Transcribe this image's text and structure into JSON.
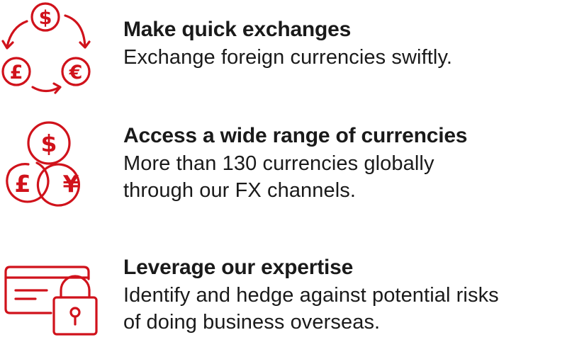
{
  "colors": {
    "accent": "#d0121b",
    "text": "#1a1a1a",
    "background": "#ffffff"
  },
  "features": [
    {
      "icon": "currency-exchange-cycle-icon",
      "title": "Make quick exchanges",
      "description_lines": [
        "Exchange foreign currencies swiftly."
      ]
    },
    {
      "icon": "multi-currency-coins-icon",
      "title": "Access a wide range of currencies",
      "description_lines": [
        "More than 130 currencies globally",
        "through our FX channels."
      ]
    },
    {
      "icon": "secure-card-lock-icon",
      "title": "Leverage our expertise",
      "description_lines": [
        "Identify and hedge against potential risks",
        "of doing business overseas."
      ]
    }
  ],
  "icon_glyphs": {
    "dollar": "$",
    "pound": "£",
    "euro": "€",
    "yen": "¥"
  }
}
